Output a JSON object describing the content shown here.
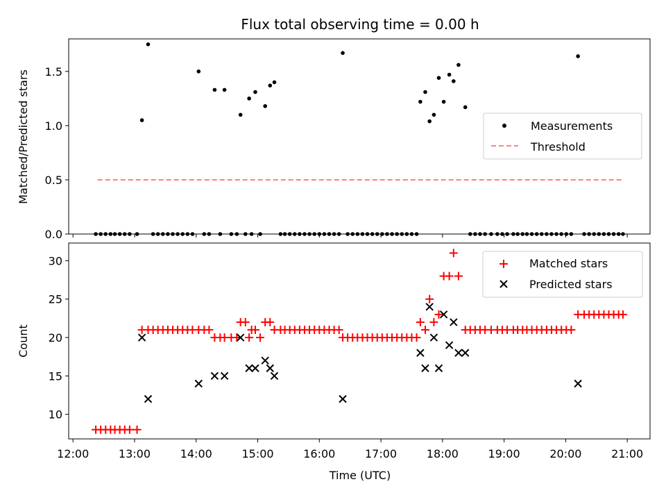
{
  "chart_data": [
    {
      "type": "scatter",
      "title": "Flux total observing time = 0.00 h",
      "xlabel": "",
      "ylabel": "Matched/Predicted stars",
      "ylim": [
        0,
        1.8
      ],
      "yticks": [
        0.0,
        0.5,
        1.0,
        1.5
      ],
      "ytick_labels": [
        "0.0",
        "0.5",
        "1.0",
        "1.5"
      ],
      "xlim": [
        11.93,
        21.37
      ],
      "legend": {
        "placement": "center-right",
        "entries": [
          {
            "label": "Measurements",
            "marker": "dot",
            "color": "#000000"
          },
          {
            "label": "Threshold",
            "marker": "dashed-line",
            "color": "#ff7f7f"
          }
        ]
      },
      "threshold": {
        "value": 0.5,
        "x_start": 12.4,
        "x_end": 20.93,
        "color": "#ff7f7f"
      },
      "series": [
        {
          "name": "Measurements",
          "x": [
            12.37,
            12.45,
            12.53,
            12.61,
            12.68,
            12.76,
            12.84,
            12.92,
            13.04,
            13.12,
            13.22,
            13.3,
            13.38,
            13.46,
            13.54,
            13.62,
            13.7,
            13.78,
            13.86,
            13.94,
            14.04,
            14.13,
            14.21,
            14.3,
            14.39,
            14.46,
            14.57,
            14.66,
            14.72,
            14.8,
            14.86,
            14.9,
            14.96,
            15.04,
            15.12,
            15.2,
            15.27,
            15.37,
            15.44,
            15.52,
            15.6,
            15.68,
            15.76,
            15.84,
            15.92,
            16.0,
            16.08,
            16.16,
            16.24,
            16.32,
            16.38,
            16.46,
            16.54,
            16.62,
            16.7,
            16.78,
            16.86,
            16.94,
            17.02,
            17.1,
            17.18,
            17.26,
            17.34,
            17.42,
            17.5,
            17.58,
            17.64,
            17.72,
            17.79,
            17.86,
            17.94,
            18.02,
            18.11,
            18.18,
            18.26,
            18.37,
            18.45,
            18.53,
            18.61,
            18.69,
            18.79,
            18.89,
            18.97,
            19.05,
            19.15,
            19.22,
            19.3,
            19.37,
            19.45,
            19.53,
            19.61,
            19.69,
            19.77,
            19.85,
            19.93,
            20.01,
            20.09,
            20.2,
            20.3,
            20.38,
            20.46,
            20.54,
            20.62,
            20.7,
            20.78,
            20.86,
            20.93
          ],
          "y": [
            0,
            0,
            0,
            0,
            0,
            0,
            0,
            0,
            0,
            1.05,
            1.75,
            0,
            0,
            0,
            0,
            0,
            0,
            0,
            0,
            0,
            1.5,
            0,
            0,
            1.33,
            0,
            1.33,
            0,
            0,
            1.1,
            0,
            1.25,
            0,
            1.31,
            0,
            1.18,
            1.37,
            1.4,
            0,
            0,
            0,
            0,
            0,
            0,
            0,
            0,
            0,
            0,
            0,
            0,
            0,
            1.67,
            0,
            0,
            0,
            0,
            0,
            0,
            0,
            0,
            0,
            0,
            0,
            0,
            0,
            0,
            0,
            1.22,
            1.31,
            1.04,
            1.1,
            1.44,
            1.22,
            1.47,
            1.41,
            1.56,
            1.17,
            0,
            0,
            0,
            0,
            0,
            0,
            0,
            0,
            0,
            0,
            0,
            0,
            0,
            0,
            0,
            0,
            0,
            0,
            0,
            0,
            0,
            1.64,
            0,
            0,
            0,
            0,
            0,
            0,
            0,
            0,
            0
          ],
          "color": "#000000"
        }
      ]
    },
    {
      "type": "scatter",
      "title": "",
      "xlabel": "Time (UTC)",
      "ylabel": "Count",
      "ylim": [
        6.8,
        32.3
      ],
      "yticks": [
        10,
        15,
        20,
        25,
        30
      ],
      "ytick_labels": [
        "10",
        "15",
        "20",
        "25",
        "30"
      ],
      "xlim": [
        11.93,
        21.37
      ],
      "xticks": [
        12,
        13,
        14,
        15,
        16,
        17,
        18,
        19,
        20,
        21
      ],
      "xtick_labels": [
        "12:00",
        "13:00",
        "14:00",
        "15:00",
        "16:00",
        "17:00",
        "18:00",
        "19:00",
        "20:00",
        "21:00"
      ],
      "legend": {
        "placement": "top-right",
        "entries": [
          {
            "label": "Matched stars",
            "marker": "plus",
            "color": "#ff0000"
          },
          {
            "label": "Predicted stars",
            "marker": "x",
            "color": "#000000"
          }
        ]
      },
      "series": [
        {
          "name": "Matched stars",
          "x": [
            12.37,
            12.45,
            12.53,
            12.61,
            12.68,
            12.76,
            12.84,
            12.92,
            13.04,
            13.12,
            13.22,
            13.3,
            13.38,
            13.46,
            13.54,
            13.62,
            13.7,
            13.78,
            13.86,
            13.94,
            14.04,
            14.13,
            14.21,
            14.3,
            14.39,
            14.46,
            14.57,
            14.66,
            14.72,
            14.8,
            14.86,
            14.9,
            14.96,
            15.04,
            15.12,
            15.2,
            15.27,
            15.37,
            15.44,
            15.52,
            15.6,
            15.68,
            15.76,
            15.84,
            15.92,
            16.0,
            16.08,
            16.16,
            16.24,
            16.32,
            16.38,
            16.46,
            16.54,
            16.62,
            16.7,
            16.78,
            16.86,
            16.94,
            17.02,
            17.1,
            17.18,
            17.26,
            17.34,
            17.42,
            17.5,
            17.58,
            17.64,
            17.72,
            17.79,
            17.86,
            17.94,
            18.02,
            18.11,
            18.18,
            18.26,
            18.37,
            18.45,
            18.53,
            18.61,
            18.69,
            18.79,
            18.89,
            18.97,
            19.05,
            19.15,
            19.22,
            19.3,
            19.37,
            19.45,
            19.53,
            19.61,
            19.69,
            19.77,
            19.85,
            19.93,
            20.01,
            20.09,
            20.2,
            20.3,
            20.38,
            20.46,
            20.54,
            20.62,
            20.7,
            20.78,
            20.86,
            20.93
          ],
          "y": [
            8,
            8,
            8,
            8,
            8,
            8,
            8,
            8,
            8,
            21,
            21,
            21,
            21,
            21,
            21,
            21,
            21,
            21,
            21,
            21,
            21,
            21,
            21,
            20,
            20,
            20,
            20,
            20,
            22,
            22,
            20,
            21,
            21,
            20,
            22,
            22,
            21,
            21,
            21,
            21,
            21,
            21,
            21,
            21,
            21,
            21,
            21,
            21,
            21,
            21,
            20,
            20,
            20,
            20,
            20,
            20,
            20,
            20,
            20,
            20,
            20,
            20,
            20,
            20,
            20,
            20,
            22,
            21,
            25,
            22,
            23,
            28,
            28,
            31,
            28,
            21,
            21,
            21,
            21,
            21,
            21,
            21,
            21,
            21,
            21,
            21,
            21,
            21,
            21,
            21,
            21,
            21,
            21,
            21,
            21,
            21,
            21,
            23,
            23,
            23,
            23,
            23,
            23,
            23,
            23,
            23,
            23
          ],
          "color": "#ff0000"
        },
        {
          "name": "Predicted stars",
          "x": [
            13.12,
            13.22,
            14.04,
            14.3,
            14.46,
            14.72,
            14.86,
            14.96,
            15.12,
            15.2,
            15.27,
            16.38,
            17.64,
            17.72,
            17.79,
            17.86,
            17.94,
            18.02,
            18.11,
            18.18,
            18.26,
            18.37,
            20.2
          ],
          "y": [
            20,
            12,
            14,
            15,
            15,
            20,
            16,
            16,
            17,
            16,
            15,
            12,
            18,
            16,
            24,
            20,
            16,
            23,
            19,
            22,
            18,
            18,
            14
          ],
          "color": "#000000"
        }
      ]
    }
  ]
}
